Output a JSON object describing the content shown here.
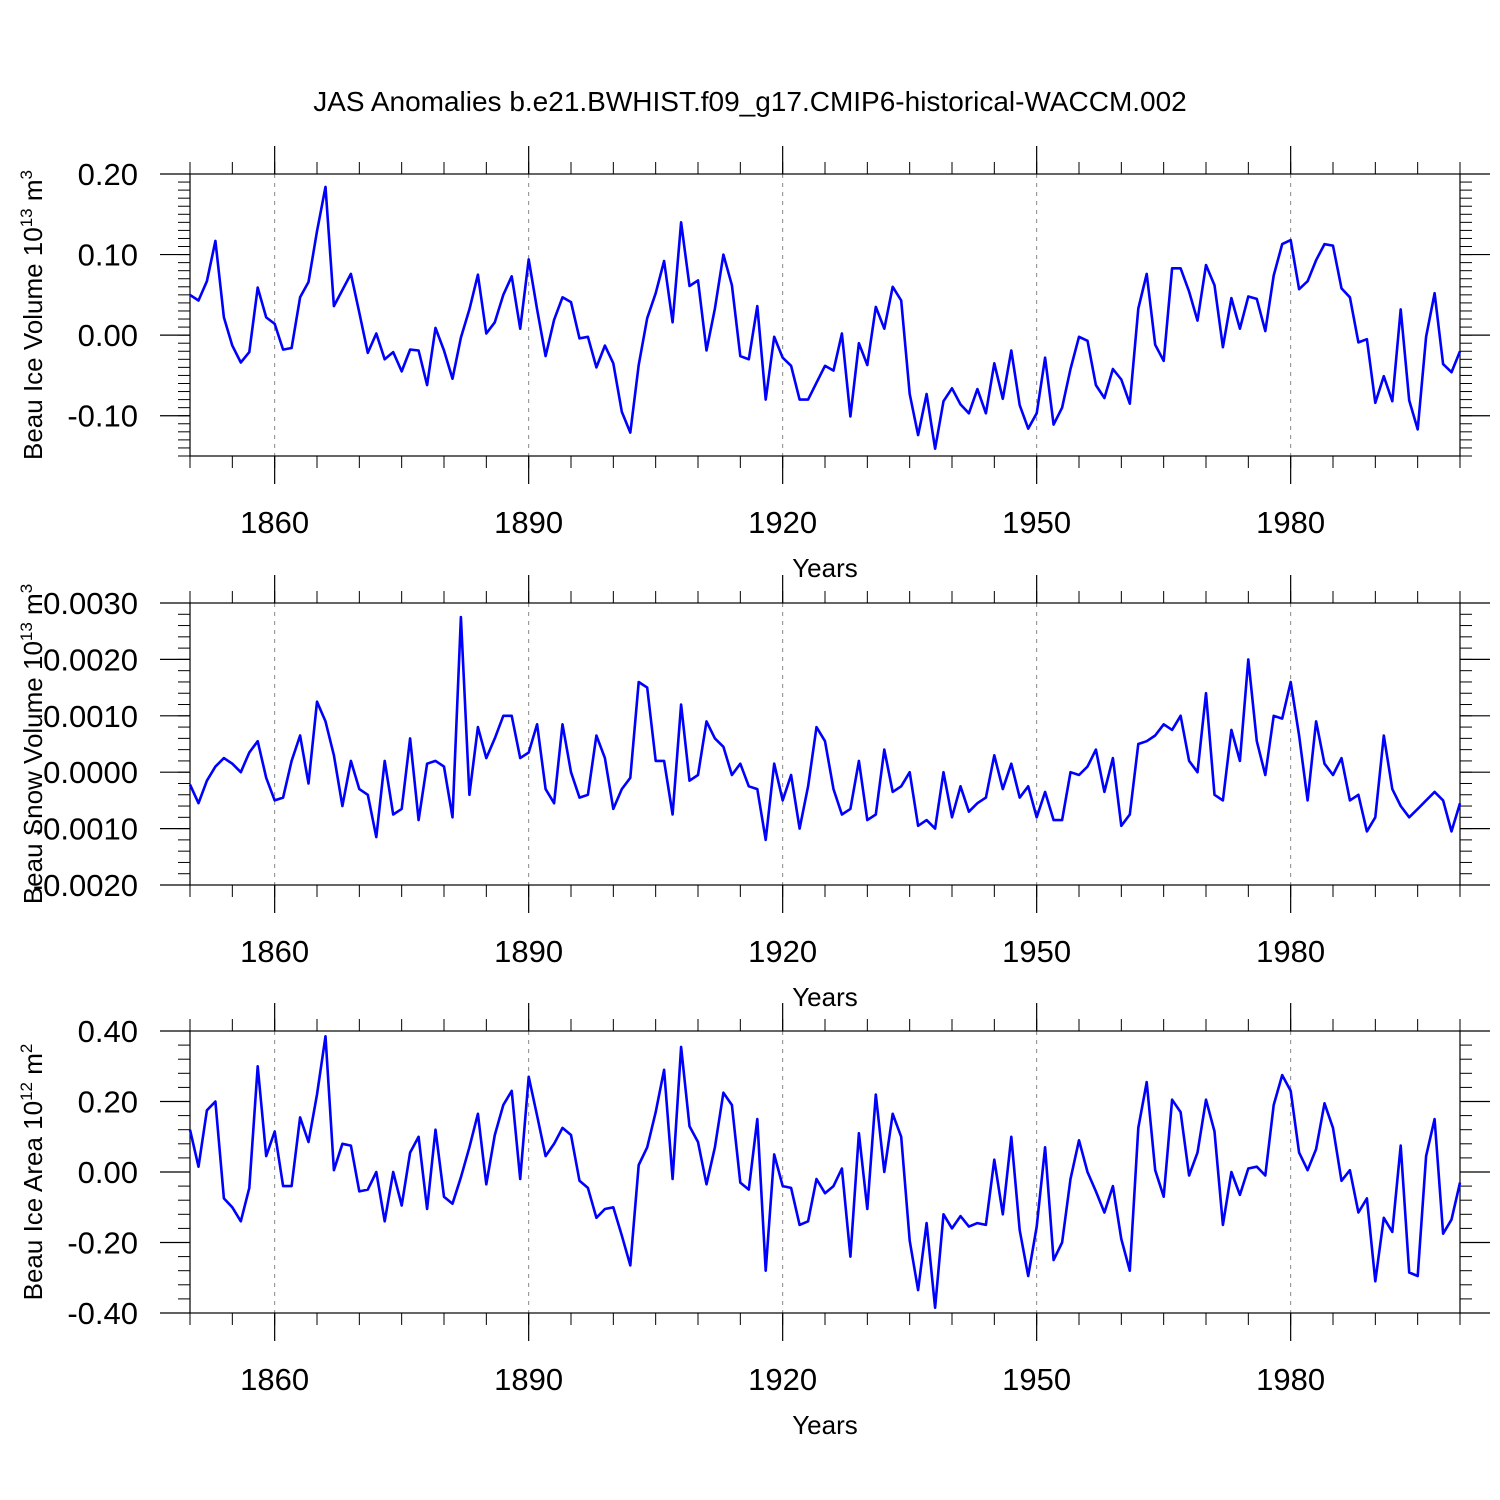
{
  "title": "JAS Anomalies b.e21.BWHIST.f09_g17.CMIP6-historical-WACCM.002",
  "line_color": "#0000ff",
  "chart_data": [
    {
      "type": "line",
      "ylabel": "Beau Ice Volume 10",
      "ylabel_exp": "13",
      "ylabel_unit": " m",
      "ylabel_unit_exp": "3",
      "xlabel": "Years",
      "xlim": [
        1850,
        2000
      ],
      "ylim": [
        -0.15,
        0.2
      ],
      "yticks": [
        0.2,
        0.1,
        0.0,
        -0.1
      ],
      "ytick_labels": [
        "0.20",
        "0.10",
        "0.00",
        "-0.10"
      ],
      "xticks": [
        1860,
        1890,
        1920,
        1950,
        1980
      ],
      "xtick_labels": [
        "1860",
        "1890",
        "1920",
        "1950",
        "1980"
      ],
      "x_start": 1850,
      "values": [
        0.05,
        0.043,
        0.067,
        0.117,
        0.022,
        -0.013,
        -0.034,
        -0.021,
        0.059,
        0.022,
        0.014,
        -0.018,
        -0.016,
        0.047,
        0.066,
        0.129,
        0.184,
        0.036,
        0.056,
        0.076,
        0.028,
        -0.022,
        0.002,
        -0.03,
        -0.021,
        -0.045,
        -0.018,
        -0.019,
        -0.062,
        0.009,
        -0.019,
        -0.054,
        -0.003,
        0.032,
        0.075,
        0.002,
        0.016,
        0.05,
        0.073,
        0.008,
        0.094,
        0.032,
        -0.026,
        0.019,
        0.047,
        0.041,
        -0.004,
        -0.002,
        -0.04,
        -0.013,
        -0.035,
        -0.095,
        -0.121,
        -0.037,
        0.021,
        0.052,
        0.092,
        0.016,
        0.14,
        0.061,
        0.068,
        -0.019,
        0.033,
        0.1,
        0.062,
        -0.026,
        -0.03,
        0.036,
        -0.08,
        -0.002,
        -0.028,
        -0.038,
        -0.08,
        -0.08,
        -0.059,
        -0.038,
        -0.044,
        0.002,
        -0.101,
        -0.01,
        -0.037,
        0.035,
        0.008,
        0.06,
        0.043,
        -0.073,
        -0.124,
        -0.073,
        -0.141,
        -0.082,
        -0.066,
        -0.086,
        -0.097,
        -0.067,
        -0.097,
        -0.035,
        -0.079,
        -0.019,
        -0.087,
        -0.116,
        -0.097,
        -0.028,
        -0.111,
        -0.09,
        -0.042,
        -0.002,
        -0.007,
        -0.062,
        -0.078,
        -0.042,
        -0.055,
        -0.085,
        0.033,
        0.076,
        -0.012,
        -0.032,
        0.083,
        0.083,
        0.054,
        0.018,
        0.087,
        0.062,
        -0.015,
        0.046,
        0.008,
        0.048,
        0.045,
        0.005,
        0.074,
        0.113,
        0.118,
        0.057,
        0.067,
        0.093,
        0.113,
        0.111,
        0.058,
        0.047,
        -0.009,
        -0.005,
        -0.084,
        -0.051,
        -0.082,
        0.032,
        -0.081,
        -0.117,
        -0.002,
        0.052,
        -0.036,
        -0.046,
        -0.02
      ]
    },
    {
      "type": "line",
      "ylabel": "Beau Snow Volume 10",
      "ylabel_exp": "13",
      "ylabel_unit": " m",
      "ylabel_unit_exp": "3",
      "xlabel": "Years",
      "xlim": [
        1850,
        2000
      ],
      "ylim": [
        -0.002,
        0.003
      ],
      "yticks": [
        0.003,
        0.002,
        0.001,
        0.0,
        -0.001,
        -0.002
      ],
      "ytick_labels": [
        "0.0030",
        "0.0020",
        "0.0010",
        "0.0000",
        "-0.0010",
        "-0.0020"
      ],
      "xticks": [
        1860,
        1890,
        1920,
        1950,
        1980
      ],
      "xtick_labels": [
        "1860",
        "1890",
        "1920",
        "1950",
        "1980"
      ],
      "x_start": 1850,
      "values": [
        -0.00022,
        -0.00055,
        -0.00015,
        0.0001,
        0.00025,
        0.00015,
        0.0,
        0.00035,
        0.00055,
        -0.0001,
        -0.0005,
        -0.00045,
        0.0002,
        0.00065,
        -0.0002,
        0.00125,
        0.0009,
        0.0003,
        -0.0006,
        0.0002,
        -0.0003,
        -0.0004,
        -0.00115,
        0.0002,
        -0.00075,
        -0.00065,
        0.0006,
        -0.00085,
        0.00015,
        0.0002,
        0.0001,
        -0.0008,
        0.00275,
        -0.0004,
        0.0008,
        0.00025,
        0.0006,
        0.001,
        0.001,
        0.00025,
        0.00035,
        0.00085,
        -0.0003,
        -0.00055,
        0.00085,
        0.0,
        -0.00045,
        -0.0004,
        0.00065,
        0.00025,
        -0.00065,
        -0.0003,
        -0.0001,
        0.0016,
        0.0015,
        0.0002,
        0.0002,
        -0.00075,
        0.0012,
        -0.00015,
        -5e-05,
        0.0009,
        0.0006,
        0.00045,
        -5e-05,
        0.00015,
        -0.00025,
        -0.0003,
        -0.0012,
        0.00015,
        -0.0005,
        -5e-05,
        -0.001,
        -0.00025,
        0.0008,
        0.00055,
        -0.0003,
        -0.00075,
        -0.00065,
        0.0002,
        -0.00085,
        -0.00075,
        0.0004,
        -0.00035,
        -0.00025,
        0.0,
        -0.00095,
        -0.00085,
        -0.001,
        0.0,
        -0.0008,
        -0.00025,
        -0.0007,
        -0.00055,
        -0.00045,
        0.0003,
        -0.0003,
        0.00015,
        -0.00045,
        -0.00025,
        -0.0008,
        -0.00035,
        -0.00085,
        -0.00085,
        0.0,
        -5e-05,
        0.0001,
        0.0004,
        -0.00035,
        0.00025,
        -0.00095,
        -0.00075,
        0.0005,
        0.00055,
        0.00065,
        0.00085,
        0.00075,
        0.001,
        0.0002,
        0.0,
        0.0014,
        -0.0004,
        -0.0005,
        0.00075,
        0.0002,
        0.002,
        0.00055,
        -5e-05,
        0.001,
        0.00095,
        0.0016,
        0.00065,
        -0.0005,
        0.0009,
        0.00015,
        -5e-05,
        0.00025,
        -0.0005,
        -0.0004,
        -0.00105,
        -0.0008,
        0.00065,
        -0.0003,
        -0.0006,
        -0.0008,
        -0.00065,
        -0.0005,
        -0.00035,
        -0.0005,
        -0.00105,
        -0.00055
      ]
    },
    {
      "type": "line",
      "ylabel": "Beau Ice Area 10",
      "ylabel_exp": "12",
      "ylabel_unit": " m",
      "ylabel_unit_exp": "2",
      "xlabel": "Years",
      "xlim": [
        1850,
        2000
      ],
      "ylim": [
        -0.4,
        0.4
      ],
      "yticks": [
        0.4,
        0.2,
        0.0,
        -0.2,
        -0.4
      ],
      "ytick_labels": [
        "0.40",
        "0.20",
        "0.00",
        "-0.20",
        "-0.40"
      ],
      "xticks": [
        1860,
        1890,
        1920,
        1950,
        1980
      ],
      "xtick_labels": [
        "1860",
        "1890",
        "1920",
        "1950",
        "1980"
      ],
      "x_start": 1850,
      "values": [
        0.12,
        0.015,
        0.175,
        0.2,
        -0.075,
        -0.1,
        -0.14,
        -0.045,
        0.3,
        0.045,
        0.115,
        -0.04,
        -0.04,
        0.155,
        0.085,
        0.22,
        0.385,
        0.005,
        0.08,
        0.075,
        -0.055,
        -0.05,
        0.0,
        -0.14,
        0.0,
        -0.095,
        0.055,
        0.1,
        -0.105,
        0.12,
        -0.07,
        -0.09,
        -0.015,
        0.07,
        0.165,
        -0.035,
        0.105,
        0.19,
        0.23,
        -0.02,
        0.27,
        0.16,
        0.045,
        0.08,
        0.125,
        0.105,
        -0.025,
        -0.045,
        -0.13,
        -0.105,
        -0.1,
        -0.18,
        -0.265,
        0.02,
        0.07,
        0.17,
        0.29,
        -0.02,
        0.355,
        0.13,
        0.085,
        -0.035,
        0.07,
        0.225,
        0.19,
        -0.03,
        -0.05,
        0.15,
        -0.28,
        0.05,
        -0.04,
        -0.045,
        -0.15,
        -0.14,
        -0.02,
        -0.06,
        -0.04,
        0.01,
        -0.24,
        0.11,
        -0.105,
        0.22,
        0.0,
        0.165,
        0.1,
        -0.195,
        -0.335,
        -0.145,
        -0.385,
        -0.12,
        -0.16,
        -0.125,
        -0.155,
        -0.145,
        -0.15,
        0.035,
        -0.12,
        0.1,
        -0.165,
        -0.295,
        -0.155,
        0.07,
        -0.25,
        -0.2,
        -0.02,
        0.09,
        0.0,
        -0.055,
        -0.115,
        -0.04,
        -0.19,
        -0.28,
        0.125,
        0.255,
        0.005,
        -0.07,
        0.205,
        0.17,
        -0.01,
        0.055,
        0.205,
        0.115,
        -0.15,
        0.0,
        -0.065,
        0.01,
        0.015,
        -0.01,
        0.19,
        0.275,
        0.23,
        0.055,
        0.005,
        0.065,
        0.195,
        0.125,
        -0.025,
        0.005,
        -0.115,
        -0.075,
        -0.31,
        -0.13,
        -0.17,
        0.075,
        -0.285,
        -0.295,
        0.045,
        0.15,
        -0.175,
        -0.135,
        -0.03
      ]
    }
  ]
}
